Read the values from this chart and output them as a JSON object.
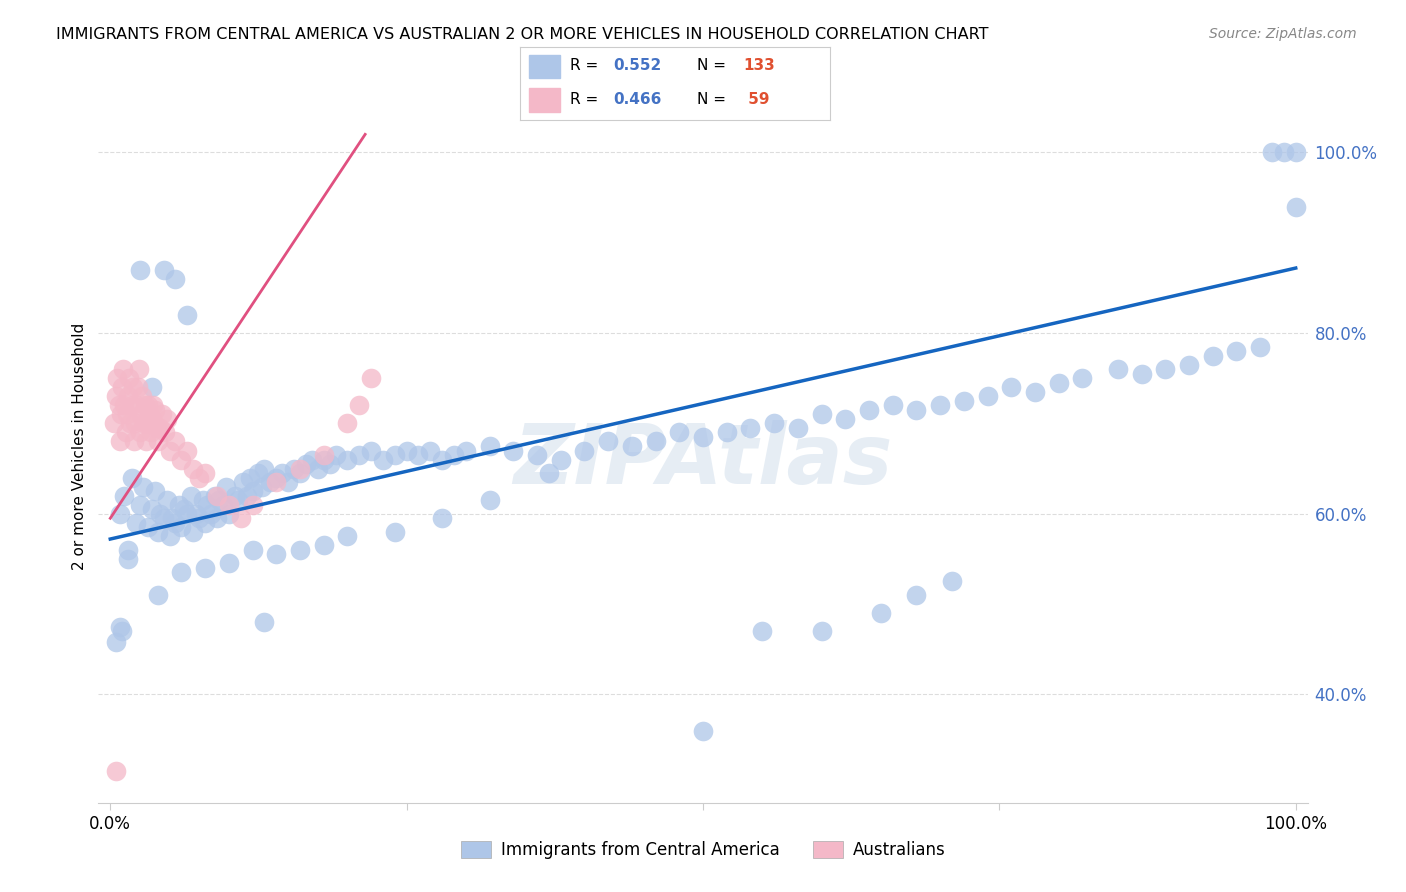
{
  "title": "IMMIGRANTS FROM CENTRAL AMERICA VS AUSTRALIAN 2 OR MORE VEHICLES IN HOUSEHOLD CORRELATION CHART",
  "source": "Source: ZipAtlas.com",
  "ylabel": "2 or more Vehicles in Household",
  "xlim": [
    -0.01,
    1.01
  ],
  "ylim": [
    0.28,
    1.07
  ],
  "ytick_labels_right": [
    "40.0%",
    "60.0%",
    "80.0%",
    "100.0%"
  ],
  "ytick_vals_right": [
    0.4,
    0.6,
    0.8,
    1.0
  ],
  "grid_color": "#dddddd",
  "blue_color": "#aec6e8",
  "pink_color": "#f4b8c8",
  "blue_line_color": "#1565c0",
  "pink_line_color": "#e05080",
  "watermark": "ZIPAtlas",
  "blue_line": [
    0.0,
    0.572,
    1.0,
    0.872
  ],
  "pink_line": [
    0.0,
    0.595,
    0.215,
    1.02
  ],
  "blue_scatter_x": [
    0.008,
    0.012,
    0.015,
    0.018,
    0.022,
    0.025,
    0.028,
    0.032,
    0.035,
    0.038,
    0.04,
    0.042,
    0.045,
    0.048,
    0.05,
    0.052,
    0.055,
    0.058,
    0.06,
    0.062,
    0.065,
    0.068,
    0.07,
    0.072,
    0.075,
    0.078,
    0.08,
    0.082,
    0.085,
    0.088,
    0.09,
    0.092,
    0.095,
    0.098,
    0.1,
    0.105,
    0.108,
    0.112,
    0.115,
    0.118,
    0.12,
    0.125,
    0.128,
    0.13,
    0.135,
    0.14,
    0.145,
    0.15,
    0.155,
    0.16,
    0.165,
    0.17,
    0.175,
    0.18,
    0.185,
    0.19,
    0.2,
    0.21,
    0.22,
    0.23,
    0.24,
    0.25,
    0.26,
    0.27,
    0.28,
    0.29,
    0.3,
    0.32,
    0.34,
    0.36,
    0.38,
    0.4,
    0.42,
    0.44,
    0.46,
    0.48,
    0.5,
    0.52,
    0.54,
    0.56,
    0.58,
    0.6,
    0.62,
    0.64,
    0.66,
    0.68,
    0.7,
    0.72,
    0.74,
    0.76,
    0.78,
    0.8,
    0.82,
    0.85,
    0.87,
    0.89,
    0.91,
    0.93,
    0.95,
    0.97,
    0.98,
    0.99,
    1.0,
    1.0,
    0.5,
    0.55,
    0.6,
    0.65,
    0.68,
    0.71,
    0.13,
    0.065,
    0.055,
    0.045,
    0.035,
    0.025,
    0.015,
    0.01,
    0.008,
    0.005,
    0.04,
    0.06,
    0.08,
    0.1,
    0.12,
    0.14,
    0.16,
    0.18,
    0.2,
    0.24,
    0.28,
    0.32,
    0.37
  ],
  "blue_scatter_y": [
    0.6,
    0.62,
    0.56,
    0.64,
    0.59,
    0.61,
    0.63,
    0.585,
    0.605,
    0.625,
    0.58,
    0.6,
    0.595,
    0.615,
    0.575,
    0.595,
    0.59,
    0.61,
    0.585,
    0.605,
    0.6,
    0.62,
    0.58,
    0.6,
    0.595,
    0.615,
    0.59,
    0.61,
    0.6,
    0.62,
    0.595,
    0.615,
    0.61,
    0.63,
    0.6,
    0.62,
    0.615,
    0.635,
    0.62,
    0.64,
    0.625,
    0.645,
    0.63,
    0.65,
    0.635,
    0.64,
    0.645,
    0.635,
    0.65,
    0.645,
    0.655,
    0.66,
    0.65,
    0.66,
    0.655,
    0.665,
    0.66,
    0.665,
    0.67,
    0.66,
    0.665,
    0.67,
    0.665,
    0.67,
    0.66,
    0.665,
    0.67,
    0.675,
    0.67,
    0.665,
    0.66,
    0.67,
    0.68,
    0.675,
    0.68,
    0.69,
    0.685,
    0.69,
    0.695,
    0.7,
    0.695,
    0.71,
    0.705,
    0.715,
    0.72,
    0.715,
    0.72,
    0.725,
    0.73,
    0.74,
    0.735,
    0.745,
    0.75,
    0.76,
    0.755,
    0.76,
    0.765,
    0.775,
    0.78,
    0.785,
    1.0,
    1.0,
    1.0,
    0.94,
    0.36,
    0.47,
    0.47,
    0.49,
    0.51,
    0.525,
    0.48,
    0.82,
    0.86,
    0.87,
    0.74,
    0.87,
    0.55,
    0.47,
    0.475,
    0.458,
    0.51,
    0.535,
    0.54,
    0.545,
    0.56,
    0.555,
    0.56,
    0.565,
    0.575,
    0.58,
    0.595,
    0.615,
    0.645
  ],
  "pink_scatter_x": [
    0.003,
    0.005,
    0.006,
    0.007,
    0.008,
    0.009,
    0.01,
    0.011,
    0.012,
    0.013,
    0.014,
    0.015,
    0.016,
    0.017,
    0.018,
    0.019,
    0.02,
    0.021,
    0.022,
    0.023,
    0.024,
    0.025,
    0.026,
    0.027,
    0.028,
    0.029,
    0.03,
    0.031,
    0.032,
    0.033,
    0.034,
    0.035,
    0.036,
    0.037,
    0.038,
    0.039,
    0.04,
    0.042,
    0.044,
    0.046,
    0.048,
    0.05,
    0.055,
    0.06,
    0.065,
    0.07,
    0.075,
    0.08,
    0.09,
    0.1,
    0.11,
    0.12,
    0.14,
    0.16,
    0.18,
    0.2,
    0.21,
    0.22,
    0.005
  ],
  "pink_scatter_y": [
    0.7,
    0.73,
    0.75,
    0.72,
    0.68,
    0.71,
    0.74,
    0.76,
    0.72,
    0.69,
    0.71,
    0.73,
    0.75,
    0.7,
    0.72,
    0.74,
    0.68,
    0.7,
    0.72,
    0.74,
    0.76,
    0.69,
    0.71,
    0.73,
    0.7,
    0.72,
    0.68,
    0.7,
    0.72,
    0.71,
    0.69,
    0.705,
    0.72,
    0.7,
    0.715,
    0.695,
    0.68,
    0.695,
    0.71,
    0.69,
    0.705,
    0.67,
    0.68,
    0.66,
    0.67,
    0.65,
    0.64,
    0.645,
    0.62,
    0.61,
    0.595,
    0.61,
    0.635,
    0.65,
    0.665,
    0.7,
    0.72,
    0.75,
    0.315
  ],
  "bg_color": "#ffffff"
}
